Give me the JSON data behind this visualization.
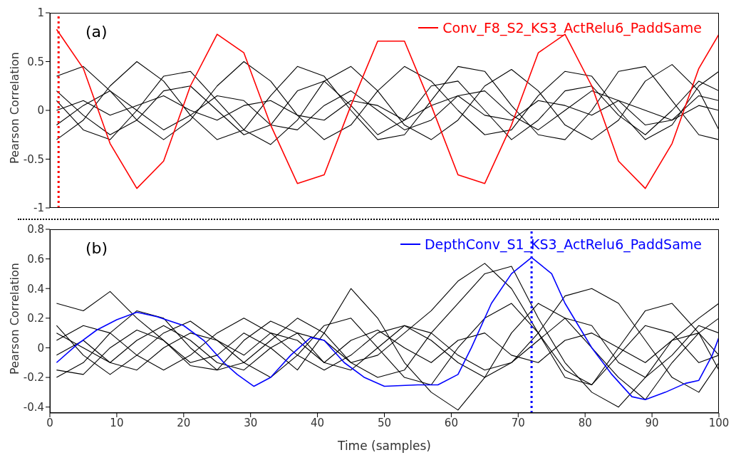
{
  "chart_data": [
    {
      "type": "line",
      "ylabel": "Pearson Correlation",
      "annotations": [
        "(a)"
      ],
      "legend": "top right",
      "tick_labels": "y",
      "grid": false,
      "xlim": [
        0,
        100
      ],
      "xticks": [
        0,
        10,
        20,
        30,
        40,
        50,
        60,
        70,
        80,
        90,
        100
      ],
      "ylim": [
        -1,
        1
      ],
      "yticks": [
        -1,
        -0.5,
        0,
        0.5,
        1
      ],
      "x": [
        1,
        5,
        9,
        13,
        17,
        21,
        25,
        29,
        33,
        37,
        41,
        45,
        49,
        53,
        57,
        61,
        65,
        69,
        73,
        77,
        81,
        85,
        89,
        93,
        97,
        100
      ],
      "ref_lines": [
        {
          "axis": "x",
          "value": 1.3,
          "color": "#ff0000",
          "line_style": "dotted"
        }
      ],
      "series": [
        {
          "color": "#000000",
          "values": [
            0.35,
            0.45,
            0.2,
            -0.1,
            -0.3,
            -0.1,
            0.25,
            0.5,
            0.3,
            -0.05,
            -0.3,
            -0.15,
            0.2,
            0.45,
            0.3,
            0,
            -0.25,
            -0.2,
            0.15,
            0.4,
            0.35,
            0,
            -0.3,
            -0.15,
            0.25,
            0.4
          ]
        },
        {
          "color": "#000000",
          "values": [
            -0.3,
            -0.1,
            0.25,
            0.5,
            0.3,
            -0.05,
            -0.3,
            -0.2,
            0.15,
            0.45,
            0.35,
            0,
            -0.3,
            -0.25,
            0.1,
            0.45,
            0.4,
            0.05,
            -0.25,
            -0.3,
            0,
            0.4,
            0.45,
            0.1,
            -0.25,
            -0.3
          ]
        },
        {
          "color": "#000000",
          "values": [
            0.1,
            -0.2,
            -0.3,
            0,
            0.35,
            0.4,
            0.1,
            -0.2,
            -0.35,
            -0.1,
            0.3,
            0.45,
            0.2,
            -0.15,
            -0.3,
            -0.1,
            0.25,
            0.42,
            0.2,
            -0.15,
            -0.3,
            -0.1,
            0.3,
            0.47,
            0.2,
            -0.2
          ]
        },
        {
          "color": "#000000",
          "values": [
            0,
            0.1,
            -0.05,
            0.05,
            0.15,
            0,
            -0.1,
            0.05,
            0.1,
            -0.05,
            -0.1,
            0.1,
            0.05,
            -0.1,
            0.05,
            0.15,
            -0.05,
            -0.1,
            0.1,
            0.05,
            -0.05,
            0.1,
            0,
            -0.1,
            0.05,
            0
          ]
        },
        {
          "color": "#000000",
          "values": [
            -0.15,
            0.05,
            0.2,
            0,
            -0.2,
            -0.05,
            0.15,
            0.1,
            -0.15,
            -0.2,
            0.05,
            0.2,
            0,
            -0.2,
            -0.1,
            0.15,
            0.2,
            -0.05,
            -0.2,
            0,
            0.2,
            0.1,
            -0.15,
            -0.1,
            0.15,
            0.1
          ]
        },
        {
          "color": "#000000",
          "values": [
            0.2,
            -0.05,
            -0.25,
            -0.1,
            0.2,
            0.25,
            0,
            -0.25,
            -0.15,
            0.2,
            0.3,
            0.05,
            -0.25,
            -0.1,
            0.25,
            0.3,
            0,
            -0.3,
            -0.1,
            0.2,
            0.25,
            -0.05,
            -0.25,
            0,
            0.3,
            0.2
          ]
        },
        {
          "name": "Conv_F8_S2_KS3_ActRelu6_PaddSame",
          "color": "#ff0000",
          "values": [
            0.83,
            0.43,
            -0.34,
            -0.8,
            -0.52,
            0.25,
            0.78,
            0.59,
            -0.15,
            -0.75,
            -0.66,
            0.05,
            0.71,
            0.71,
            0.05,
            -0.66,
            -0.75,
            -0.15,
            0.59,
            0.78,
            0.25,
            -0.52,
            -0.8,
            -0.34,
            0.43,
            0.78
          ]
        }
      ]
    },
    {
      "type": "line",
      "xlabel": "Time (samples)",
      "ylabel": "Pearson Correlation",
      "annotations": [
        "(b)"
      ],
      "legend": "top right",
      "grid": false,
      "xlim": [
        0,
        100
      ],
      "xticks": [
        0,
        10,
        20,
        30,
        40,
        50,
        60,
        70,
        80,
        90,
        100
      ],
      "ylim": [
        -0.44,
        0.8
      ],
      "yticks": [
        -0.4,
        -0.2,
        0,
        0.2,
        0.4,
        0.6,
        0.8
      ],
      "x": [
        1,
        5,
        9,
        13,
        17,
        21,
        25,
        29,
        33,
        37,
        41,
        45,
        49,
        53,
        57,
        61,
        65,
        69,
        73,
        77,
        81,
        85,
        89,
        93,
        97,
        100
      ],
      "ref_lines": [
        {
          "axis": "x",
          "value": 72,
          "color": "#0000ff",
          "line_style": "dotted"
        }
      ],
      "series": [
        {
          "color": "#000000",
          "values": [
            0.3,
            0.25,
            0.38,
            0.2,
            0.05,
            -0.1,
            -0.05,
            0.1,
            0,
            -0.15,
            0.1,
            0.4,
            0.2,
            -0.1,
            -0.3,
            -0.42,
            -0.2,
            0.1,
            0.3,
            0.2,
            0,
            -0.2,
            -0.35,
            -0.1,
            0.1,
            0.2
          ]
        },
        {
          "color": "#000000",
          "values": [
            0.1,
            0,
            -0.1,
            0.05,
            0.15,
            0.05,
            -0.1,
            -0.15,
            0,
            0.1,
            0.05,
            -0.1,
            -0.05,
            0.1,
            0.25,
            0.45,
            0.57,
            0.4,
            0.1,
            -0.15,
            -0.25,
            -0.05,
            0.15,
            0.1,
            -0.1,
            -0.05
          ]
        },
        {
          "color": "#000000",
          "values": [
            -0.2,
            -0.1,
            0.1,
            0.25,
            0.2,
            0,
            -0.15,
            -0.1,
            0.05,
            0.2,
            0.1,
            -0.1,
            -0.2,
            -0.15,
            0.1,
            0.3,
            0.5,
            0.55,
            0.2,
            -0.1,
            -0.3,
            -0.4,
            -0.2,
            0.05,
            0.2,
            0.3
          ]
        },
        {
          "color": "#000000",
          "values": [
            0.05,
            0.15,
            0.1,
            -0.05,
            -0.15,
            -0.05,
            0.1,
            0.2,
            0.1,
            -0.05,
            -0.15,
            -0.05,
            0.1,
            0.15,
            0.05,
            -0.1,
            -0.2,
            -0.1,
            0.1,
            0.35,
            0.4,
            0.3,
            0.05,
            -0.2,
            -0.3,
            -0.1
          ]
        },
        {
          "color": "#000000",
          "values": [
            -0.05,
            0.05,
            -0.1,
            -0.15,
            0,
            0.1,
            0.05,
            -0.05,
            0.1,
            0.05,
            -0.1,
            0.05,
            0.12,
            0,
            -0.1,
            0.05,
            0.1,
            -0.05,
            -0.1,
            0.05,
            0.1,
            0,
            -0.1,
            0.05,
            0.1,
            -0.05
          ]
        },
        {
          "color": "#000000",
          "values": [
            0.15,
            -0.05,
            -0.18,
            -0.05,
            0.1,
            0.18,
            0.05,
            -0.1,
            -0.2,
            -0.05,
            0.15,
            0.2,
            0,
            -0.2,
            -0.25,
            0,
            0.2,
            0.3,
            0.1,
            -0.2,
            -0.25,
            0,
            0.25,
            0.3,
            0.1,
            -0.15
          ]
        },
        {
          "color": "#000000",
          "values": [
            -0.15,
            -0.18,
            0,
            0.12,
            0.05,
            -0.12,
            -0.15,
            0.05,
            0.18,
            0.1,
            -0.1,
            -0.15,
            0,
            0.15,
            0.1,
            -0.05,
            -0.15,
            -0.1,
            0.05,
            0.2,
            0.15,
            -0.1,
            -0.2,
            -0.05,
            0.15,
            0.1
          ]
        },
        {
          "name": "DepthConv_S1_KS3_ActRelu6_PaddSame",
          "color": "#0000ff",
          "x": [
            1,
            4,
            7,
            10,
            13,
            16,
            20,
            23,
            26,
            28,
            30.5,
            33,
            36,
            39,
            41,
            44,
            47,
            50,
            55,
            58,
            61,
            63,
            66,
            69,
            72,
            75,
            77,
            79,
            81,
            84,
            87,
            89,
            92,
            95,
            97,
            99,
            100
          ],
          "values": [
            -0.1,
            0.02,
            0.12,
            0.19,
            0.24,
            0.21,
            0.15,
            0.05,
            -0.1,
            -0.18,
            -0.26,
            -0.2,
            -0.05,
            0.07,
            0.05,
            -0.1,
            -0.2,
            -0.26,
            -0.25,
            -0.25,
            -0.18,
            0,
            0.3,
            0.5,
            0.61,
            0.5,
            0.3,
            0.15,
            0,
            -0.18,
            -0.33,
            -0.35,
            -0.3,
            -0.24,
            -0.22,
            -0.05,
            0.07
          ]
        }
      ]
    }
  ]
}
